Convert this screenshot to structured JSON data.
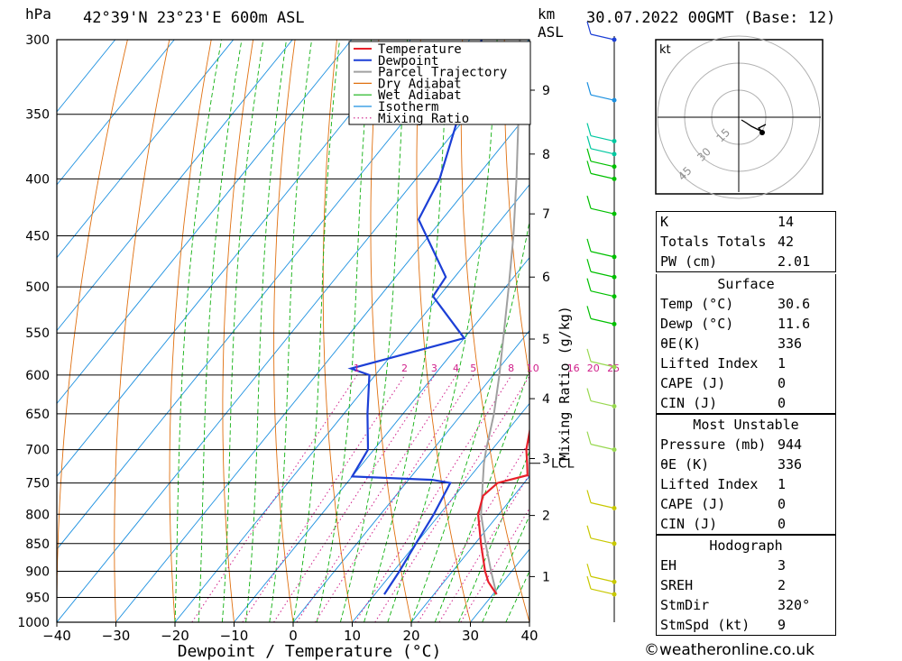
{
  "header": {
    "pressure_unit": "hPa",
    "location": "42°39'N  23°23'E  600m  ASL",
    "height_unit": "km",
    "height_ref": "ASL",
    "datetime": "30.07.2022  00GMT  (Base: 12)"
  },
  "chart_data": {
    "type": "line",
    "title": "",
    "xlabel": "Dewpoint / Temperature (°C)",
    "ylabel": "hPa",
    "xlim": [
      -40,
      40
    ],
    "ylim": [
      1000,
      300
    ],
    "y_scale": "log",
    "pressure_ticks": [
      300,
      350,
      400,
      450,
      500,
      550,
      600,
      650,
      700,
      750,
      800,
      850,
      900,
      950,
      1000
    ],
    "temperature_ticks": [
      -40,
      -30,
      -20,
      -10,
      0,
      10,
      20,
      30,
      40
    ],
    "height_ticks_km": [
      {
        "km": "1",
        "p": 910
      },
      {
        "km": "2",
        "p": 802
      },
      {
        "km": "3",
        "p": 713
      },
      {
        "km": "4",
        "p": 630
      },
      {
        "km": "5",
        "p": 557
      },
      {
        "km": "6",
        "p": 490
      },
      {
        "km": "7",
        "p": 430
      },
      {
        "km": "8",
        "p": 380
      },
      {
        "km": "9",
        "p": 333
      }
    ],
    "secondary_axis_label": "Mixing Ratio (g/kg)",
    "lcl_label": "LCL",
    "lcl_pressure": 720,
    "mixing_ratio_labels": [
      "1",
      "2",
      "3",
      "4",
      "5",
      "8",
      "10",
      "16",
      "20",
      "25"
    ],
    "mixing_ratio_values": [
      1,
      2,
      3,
      4,
      5,
      8,
      10,
      16,
      20,
      25
    ],
    "legend": [
      "Temperature",
      "Dewpoint",
      "Parcel Trajectory",
      "Dry Adiabat",
      "Wet Adiabat",
      "Isotherm",
      "Mixing Ratio"
    ],
    "legend_position": "top-right",
    "series": [
      {
        "name": "Temperature",
        "color": "#e8202a",
        "points": [
          [
            944,
            30.6
          ],
          [
            920,
            27.5
          ],
          [
            900,
            25.5
          ],
          [
            850,
            21.0
          ],
          [
            800,
            16.5
          ],
          [
            770,
            14.8
          ],
          [
            750,
            15.5
          ],
          [
            738,
            19.5
          ],
          [
            720,
            17.8
          ],
          [
            700,
            15.8
          ],
          [
            650,
            12.0
          ],
          [
            600,
            7.4
          ],
          [
            550,
            1.8
          ],
          [
            500,
            -3.8
          ],
          [
            450,
            -10.0
          ],
          [
            400,
            -18.0
          ],
          [
            350,
            -28.0
          ],
          [
            300,
            -39.0
          ]
        ]
      },
      {
        "name": "Dewpoint",
        "color": "#1c3fd6",
        "points": [
          [
            944,
            11.6
          ],
          [
            900,
            11.0
          ],
          [
            850,
            10.0
          ],
          [
            800,
            9.0
          ],
          [
            750,
            7.5
          ],
          [
            745,
            4.0
          ],
          [
            740,
            -10.0
          ],
          [
            700,
            -11.0
          ],
          [
            650,
            -16.0
          ],
          [
            600,
            -21.0
          ],
          [
            592,
            -25.0
          ],
          [
            556,
            -10.0
          ],
          [
            510,
            -21.0
          ],
          [
            490,
            -21.5
          ],
          [
            435,
            -34.0
          ],
          [
            400,
            -36.0
          ],
          [
            330,
            -44.0
          ],
          [
            300,
            -48.0
          ]
        ]
      },
      {
        "name": "Parcel Trajectory",
        "color": "#a0a0a0",
        "points": [
          [
            944,
            30.6
          ],
          [
            900,
            26.5
          ],
          [
            850,
            21.8
          ],
          [
            800,
            17.0
          ],
          [
            750,
            13.0
          ],
          [
            720,
            10.5
          ],
          [
            700,
            9.0
          ],
          [
            650,
            5.4
          ],
          [
            600,
            1.0
          ],
          [
            550,
            -4.0
          ],
          [
            500,
            -9.5
          ],
          [
            450,
            -15.7
          ],
          [
            400,
            -23.0
          ],
          [
            350,
            -31.5
          ],
          [
            300,
            -41.5
          ]
        ]
      }
    ]
  },
  "wind_barbs": {
    "colors": [
      "#c8c800",
      "#c8c800",
      "#c8c800",
      "#c8c800",
      "#98d850",
      "#98d850",
      "#98d850",
      "#00c000",
      "#00c000",
      "#00c000",
      "#00c000",
      "#00c000",
      "#00c000",
      "#00c000",
      "#00c8a0",
      "#00c8a0",
      "#1c90e0",
      "#1c3fd6"
    ],
    "pressures": [
      944,
      920,
      850,
      790,
      700,
      640,
      590,
      540,
      510,
      490,
      470,
      430,
      400,
      390,
      380,
      370,
      340,
      300
    ]
  },
  "hodograph": {
    "unit": "kt",
    "ring_labels": [
      "15",
      "30",
      "45"
    ]
  },
  "indices": {
    "rows": [
      {
        "label": "K",
        "value": "14"
      },
      {
        "label": "Totals Totals",
        "value": "42"
      },
      {
        "label": "PW (cm)",
        "value": "2.01"
      }
    ]
  },
  "surface": {
    "title": "Surface",
    "rows": [
      {
        "label": "Temp (°C)",
        "value": "30.6"
      },
      {
        "label": "Dewp (°C)",
        "value": "11.6"
      },
      {
        "label": "θE(K)",
        "value": "336"
      },
      {
        "label": "Lifted Index",
        "value": "1"
      },
      {
        "label": "CAPE (J)",
        "value": "0"
      },
      {
        "label": "CIN (J)",
        "value": "0"
      }
    ]
  },
  "most_unstable": {
    "title": "Most Unstable",
    "rows": [
      {
        "label": "Pressure (mb)",
        "value": "944"
      },
      {
        "label": "θE (K)",
        "value": "336"
      },
      {
        "label": "Lifted Index",
        "value": "1"
      },
      {
        "label": "CAPE (J)",
        "value": "0"
      },
      {
        "label": "CIN (J)",
        "value": "0"
      }
    ]
  },
  "hodograph_table": {
    "title": "Hodograph",
    "rows": [
      {
        "label": "EH",
        "value": "3"
      },
      {
        "label": "SREH",
        "value": "2"
      },
      {
        "label": "StmDir",
        "value": "320°"
      },
      {
        "label": "StmSpd (kt)",
        "value": "9"
      }
    ]
  },
  "footer": {
    "copyright": "©weatheronline.co.uk"
  }
}
